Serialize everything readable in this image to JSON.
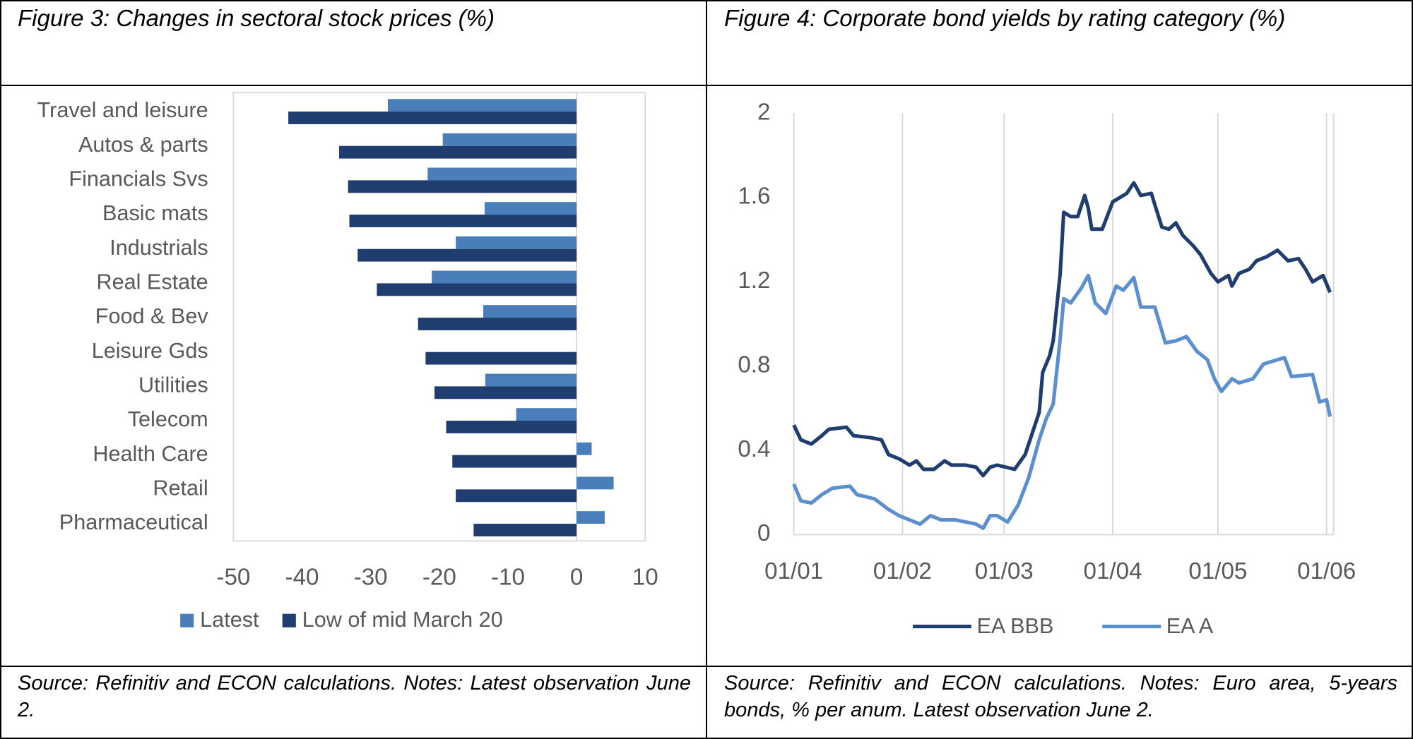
{
  "chart_data": [
    {
      "type": "bar",
      "title": "Figure 3: Changes in sectoral stock prices (%)",
      "source": "Source: Refinitiv and ECON calculations. Notes: Latest observation June 2.",
      "orientation": "horizontal",
      "categories": [
        "Travel and leisure",
        "Autos & parts",
        "Financials Svs",
        "Basic mats",
        "Industrials",
        "Real Estate",
        "Food & Bev",
        "Leisure Gds",
        "Utilities",
        "Telecom",
        "Health Care",
        "Retail",
        "Pharmaceutical"
      ],
      "series": [
        {
          "name": "Latest",
          "color": "#4a7ebb",
          "values": [
            -27.5,
            -19.5,
            -21.7,
            -13.4,
            -17.6,
            -21.1,
            -13.6,
            null,
            -13.3,
            -8.8,
            2.2,
            5.4,
            4.1
          ]
        },
        {
          "name": "Low of mid March 20",
          "color": "#1f3d6e",
          "values": [
            -42,
            -34.6,
            -33.3,
            -33.1,
            -31.9,
            -29.1,
            -23.1,
            -22,
            -20.7,
            -19,
            -18.1,
            -17.6,
            -15
          ]
        }
      ],
      "xlim": [
        -50,
        10
      ],
      "xticks": [
        -50,
        -40,
        -30,
        -20,
        -10,
        0,
        10
      ],
      "legend": "bottom",
      "grid": false
    },
    {
      "type": "line",
      "title": "Figure 4: Corporate bond yields by rating category (%)",
      "source": "Source: Refinitiv and ECON calculations. Notes: Euro area, 5-years bonds, % per anum. Latest observation June 2.",
      "series": [
        {
          "name": "EA BBB",
          "color": "#1f3d6e",
          "x": [
            "01/01",
            "03/01",
            "06/01",
            "09/01",
            "11/01",
            "16/01",
            "18/01",
            "23/01",
            "26/01",
            "28/01",
            "31/01",
            "03/02",
            "05/02",
            "07/02",
            "10/02",
            "13/02",
            "15/02",
            "19/02",
            "22/02",
            "24/02",
            "26/02",
            "28/02",
            "04/03",
            "07/03",
            "08/03",
            "10/03",
            "11/03",
            "12/03",
            "14/03",
            "15/03",
            "17/03",
            "18/03",
            "20/03",
            "22/03",
            "24/03",
            "25/03",
            "26/03",
            "29/03",
            "01/04",
            "05/04",
            "07/04",
            "09/04",
            "12/04",
            "15/04",
            "17/04",
            "19/04",
            "21/04",
            "24/04",
            "26/04",
            "29/04",
            "01/05",
            "04/05",
            "05/05",
            "07/05",
            "10/05",
            "12/05",
            "15/05",
            "18/05",
            "21/05",
            "24/05",
            "26/05",
            "28/05",
            "31/05",
            "02/06"
          ],
          "values": [
            0.52,
            0.45,
            0.43,
            0.47,
            0.5,
            0.51,
            0.47,
            0.46,
            0.45,
            0.38,
            0.36,
            0.33,
            0.35,
            0.31,
            0.31,
            0.35,
            0.33,
            0.33,
            0.32,
            0.28,
            0.32,
            0.33,
            0.31,
            0.38,
            0.43,
            0.53,
            0.58,
            0.77,
            0.85,
            0.92,
            1.24,
            1.53,
            1.51,
            1.51,
            1.61,
            1.55,
            1.45,
            1.45,
            1.58,
            1.62,
            1.67,
            1.61,
            1.62,
            1.46,
            1.45,
            1.48,
            1.42,
            1.37,
            1.33,
            1.24,
            1.2,
            1.23,
            1.18,
            1.24,
            1.26,
            1.3,
            1.32,
            1.35,
            1.3,
            1.31,
            1.26,
            1.2,
            1.23,
            1.15
          ]
        },
        {
          "name": "EA A",
          "color": "#5b8fd0",
          "x": [
            "01/01",
            "03/01",
            "06/01",
            "09/01",
            "12/01",
            "17/01",
            "19/01",
            "24/01",
            "28/01",
            "31/01",
            "03/02",
            "06/02",
            "09/02",
            "12/02",
            "16/02",
            "19/02",
            "22/02",
            "24/02",
            "26/02",
            "28/02",
            "02/03",
            "05/03",
            "08/03",
            "11/03",
            "13/03",
            "15/03",
            "17/03",
            "18/03",
            "20/03",
            "23/03",
            "25/03",
            "27/03",
            "30/03",
            "02/04",
            "04/04",
            "07/04",
            "09/04",
            "13/04",
            "16/04",
            "19/04",
            "22/04",
            "25/04",
            "28/04",
            "30/04",
            "02/05",
            "05/05",
            "07/05",
            "11/05",
            "14/05",
            "18/05",
            "20/05",
            "22/05",
            "28/05",
            "30/05",
            "01/06",
            "02/06"
          ],
          "values": [
            0.24,
            0.16,
            0.15,
            0.19,
            0.22,
            0.23,
            0.19,
            0.17,
            0.12,
            0.09,
            0.07,
            0.05,
            0.09,
            0.07,
            0.07,
            0.06,
            0.05,
            0.03,
            0.09,
            0.09,
            0.06,
            0.14,
            0.27,
            0.45,
            0.55,
            0.62,
            0.93,
            1.12,
            1.1,
            1.17,
            1.23,
            1.1,
            1.05,
            1.18,
            1.16,
            1.22,
            1.08,
            1.08,
            0.91,
            0.92,
            0.94,
            0.87,
            0.83,
            0.74,
            0.68,
            0.74,
            0.72,
            0.74,
            0.81,
            0.83,
            0.84,
            0.75,
            0.76,
            0.63,
            0.64,
            0.56
          ]
        }
      ],
      "xlim": [
        "01/01",
        "03/06"
      ],
      "xticks": [
        "01/01",
        "01/02",
        "01/03",
        "01/04",
        "01/05",
        "01/06"
      ],
      "ylim": [
        0,
        2
      ],
      "yticks": [
        0,
        0.4,
        0.8,
        1.2,
        1.6,
        2
      ],
      "legend": "bottom",
      "grid": true
    }
  ]
}
